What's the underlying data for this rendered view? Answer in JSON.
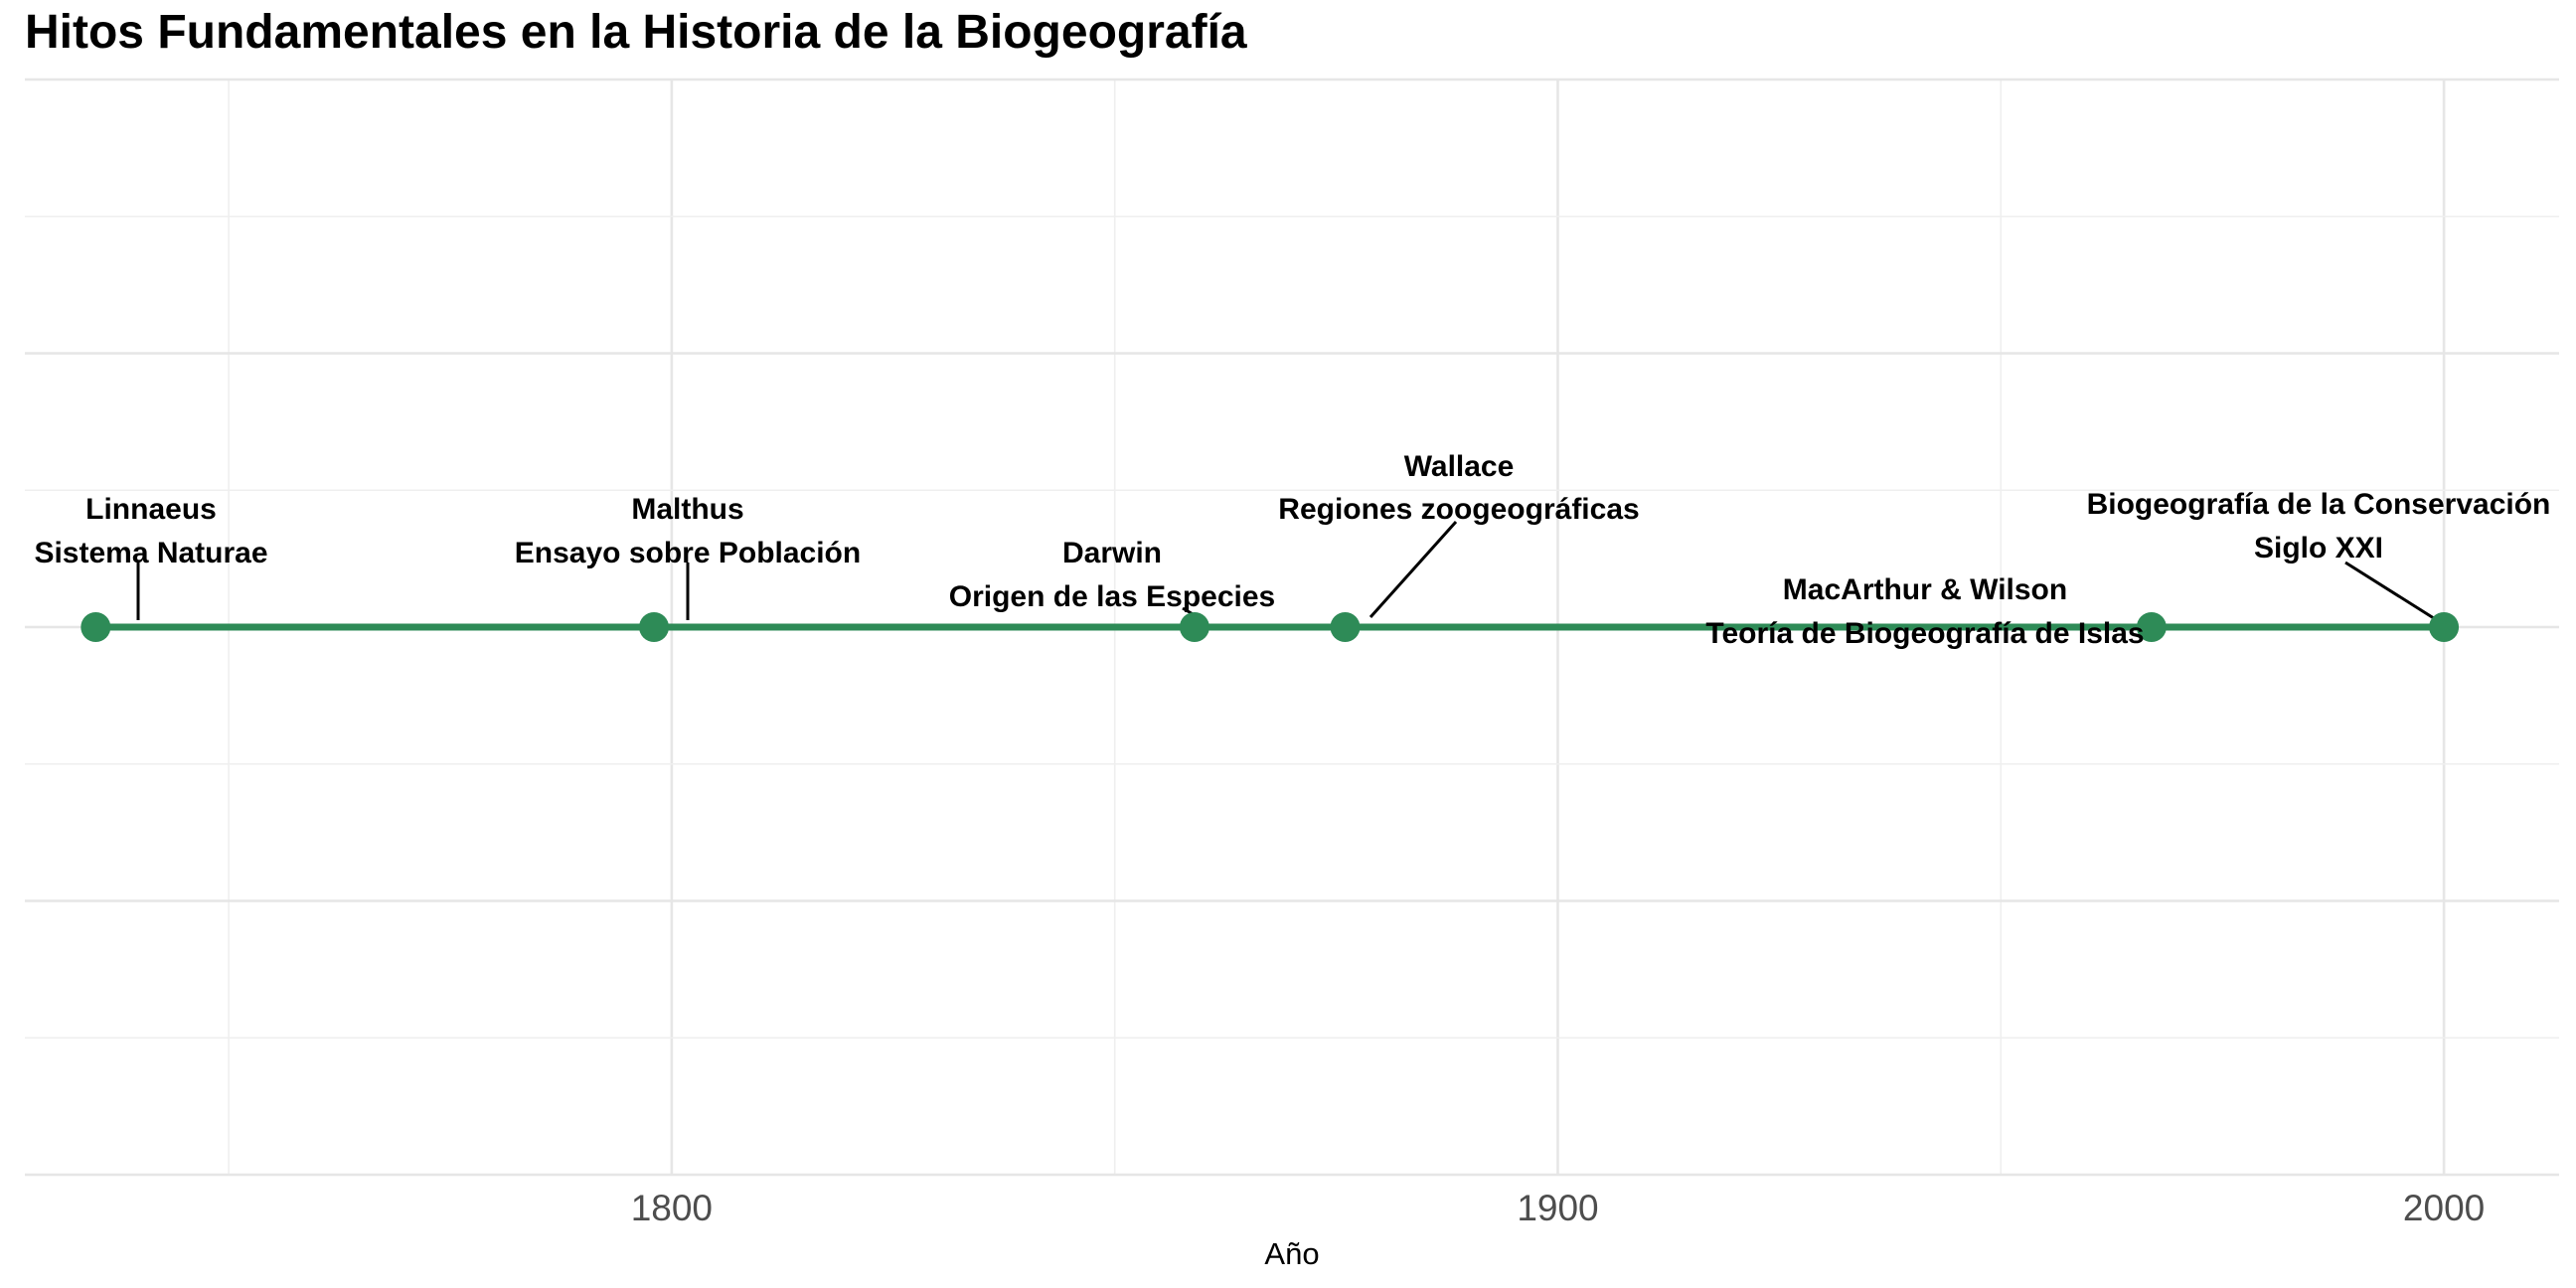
{
  "chart_data": {
    "type": "scatter",
    "title": "Hitos Fundamentales en la Historia de la Biogeografía",
    "xlabel": "Año",
    "ylabel": "",
    "xlim": [
      1727,
      2013
    ],
    "ylim": [
      -1,
      1
    ],
    "x_ticks": [
      1800,
      1900,
      2000
    ],
    "x_tick_labels": [
      "1800",
      "1900",
      "2000"
    ],
    "grid": true,
    "line_color": "#2e8b57",
    "point_color": "#2e8b57",
    "points": [
      {
        "year": 1735,
        "name": "Linnaeus",
        "work": "Sistema Naturae"
      },
      {
        "year": 1798,
        "name": "Malthus",
        "work": "Ensayo sobre Población"
      },
      {
        "year": 1859,
        "name": "Darwin",
        "work": "Origen de las Especies"
      },
      {
        "year": 1876,
        "name": "Wallace",
        "work": "Regiones zoogeográficas"
      },
      {
        "year": 1967,
        "name": "MacArthur & Wilson",
        "work": "Teoría de Biogeografía de Islas"
      },
      {
        "year": 2000,
        "name": "Biogeografía de la Conservación",
        "work": "Siglo XXI"
      }
    ]
  }
}
